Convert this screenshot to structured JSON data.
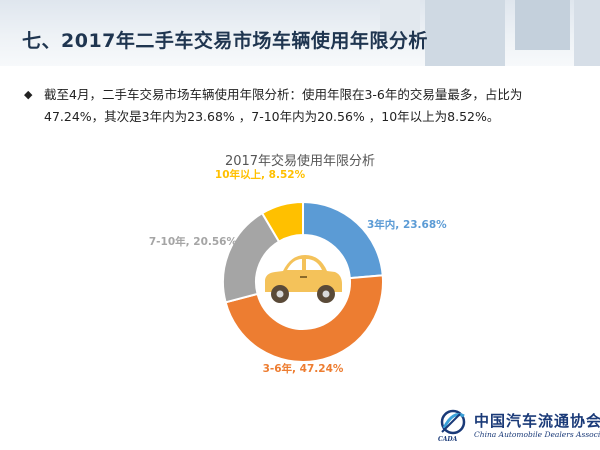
{
  "slide": {
    "title": "七、2017年二手车交易市场车辆使用年限分析",
    "bullet_line1": "截至4月，二手车交易市场车辆使用年限分析：使用年限在3-6年的交易量最多，占比为",
    "bullet_line2": "47.24%，其次是3年内为23.68%  ，7-10年内为20.56%  ，10年以上为8.52%。"
  },
  "logo": {
    "cn": "中国汽车流通协会",
    "en": "China Automobile Dealers Association",
    "abbr": "CADA"
  },
  "colors": {
    "series": [
      "#5b9bd5",
      "#ed7d31",
      "#a5a5a5",
      "#ffc000"
    ],
    "car_body": "#f4c25a"
  },
  "chart_data": {
    "type": "pie",
    "subtype": "donut",
    "title": "2017年交易使用年限分析",
    "categories": [
      "3年内",
      "3-6年",
      "7-10年",
      "10年以上"
    ],
    "values": [
      23.68,
      47.24,
      20.56,
      8.52
    ],
    "labels": [
      "3年内, 23.68%",
      "3-6年, 47.24%",
      "7-10年, 20.56%",
      "10年以上, 8.52%"
    ],
    "start_angle_deg": 0,
    "direction": "clockwise",
    "center_icon": "car-icon",
    "legend": "none"
  }
}
